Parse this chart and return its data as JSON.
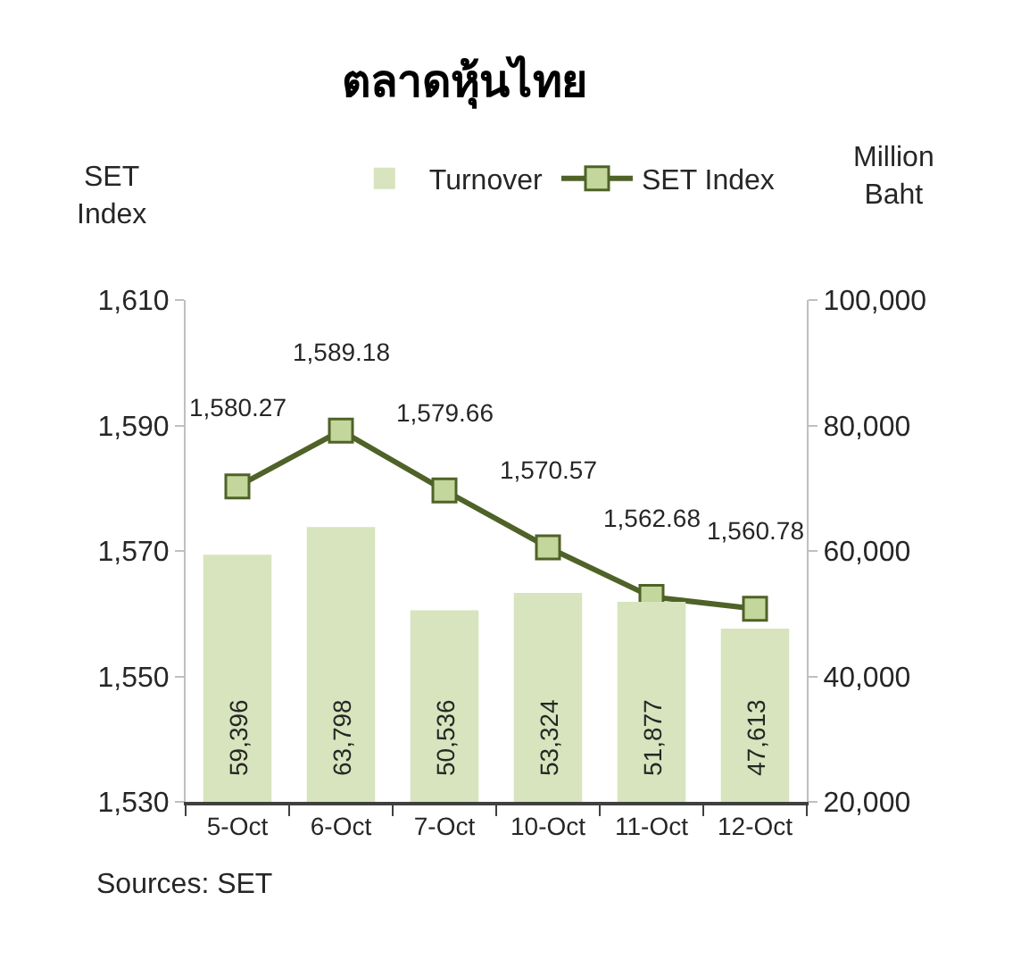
{
  "chart_data": {
    "type": "bar",
    "title": "ตลาดหุ้นไทย",
    "categories": [
      "5-Oct",
      "6-Oct",
      "7-Oct",
      "10-Oct",
      "11-Oct",
      "12-Oct"
    ],
    "series": [
      {
        "name": "Turnover",
        "axis": "y2",
        "color": "#d7e4bd",
        "values": [
          59396,
          63798,
          50536,
          53324,
          51877,
          47613
        ],
        "value_labels": [
          "59,396",
          "63,798",
          "50,536",
          "53,324",
          "51,877",
          "47,613"
        ]
      },
      {
        "name": "SET Index",
        "type": "line",
        "color": "#4f6228",
        "values": [
          1580.27,
          1589.18,
          1579.66,
          1570.57,
          1562.68,
          1560.78
        ],
        "value_labels": [
          "1,580.27",
          "1,589.18",
          "1,579.66",
          "1,570.57",
          "1,562.68",
          "1,560.78"
        ]
      }
    ],
    "ylabel": "SET Index",
    "y2label": "Million Baht",
    "ylim": [
      1530,
      1610
    ],
    "yticks": [
      {
        "value": 1530,
        "label": "1,530"
      },
      {
        "value": 1550,
        "label": "1,550"
      },
      {
        "value": 1570,
        "label": "1,570"
      },
      {
        "value": 1590,
        "label": "1,590"
      },
      {
        "value": 1610,
        "label": "1,610"
      }
    ],
    "y2lim": [
      20000,
      100000
    ],
    "y2ticks": [
      {
        "value": 20000,
        "label": "20,000"
      },
      {
        "value": 40000,
        "label": "40,000"
      },
      {
        "value": 60000,
        "label": "60,000"
      },
      {
        "value": 80000,
        "label": "80,000"
      },
      {
        "value": 100000,
        "label": "100,000"
      }
    ],
    "marker": "square",
    "legend": "top",
    "grid": false,
    "annotations": [
      "Sources: SET"
    ]
  }
}
